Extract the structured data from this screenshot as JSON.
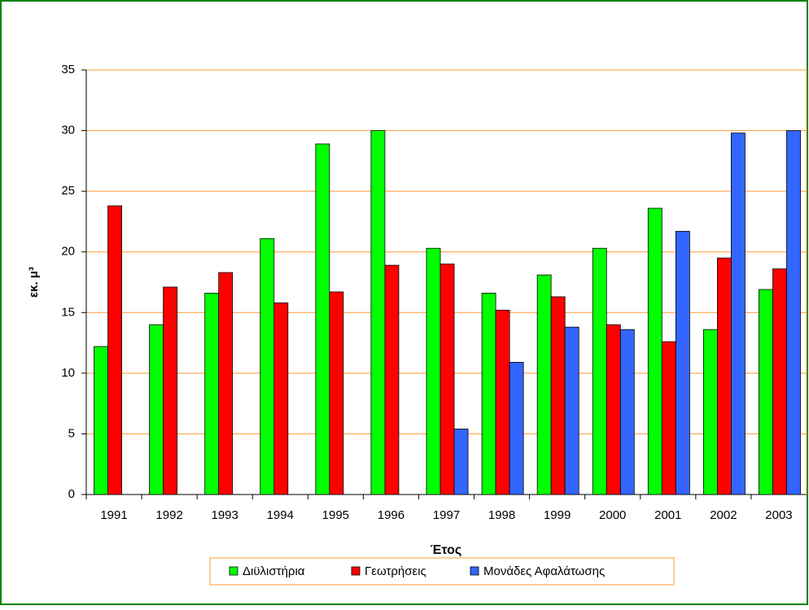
{
  "chart_data": {
    "type": "bar",
    "xlabel": "Έτος",
    "ylabel": "εκ. μ³",
    "categories": [
      "1991",
      "1992",
      "1993",
      "1994",
      "1995",
      "1996",
      "1997",
      "1998",
      "1999",
      "2000",
      "2001",
      "2002",
      "2003"
    ],
    "series": [
      {
        "name": "Διϋλιστήρια",
        "color": "#00ff00",
        "values": [
          12.2,
          14.0,
          16.6,
          21.1,
          28.9,
          30.0,
          20.3,
          16.6,
          18.1,
          20.3,
          23.6,
          13.6,
          16.9
        ]
      },
      {
        "name": "Γεωτρήσεις",
        "color": "#ff0000",
        "values": [
          23.8,
          17.1,
          18.3,
          15.8,
          16.7,
          18.9,
          19.0,
          15.2,
          16.3,
          14.0,
          12.6,
          19.5,
          18.6
        ]
      },
      {
        "name": "Μονάδες Αφαλάτωσης",
        "color": "#3366ff",
        "values": [
          null,
          null,
          null,
          null,
          null,
          null,
          5.4,
          10.9,
          13.8,
          13.6,
          21.7,
          29.8,
          30.0
        ]
      }
    ],
    "ylim": [
      0,
      35
    ],
    "yticks": [
      0,
      5,
      10,
      15,
      20,
      25,
      30,
      35
    ],
    "grid": true,
    "legend": "bottom"
  }
}
